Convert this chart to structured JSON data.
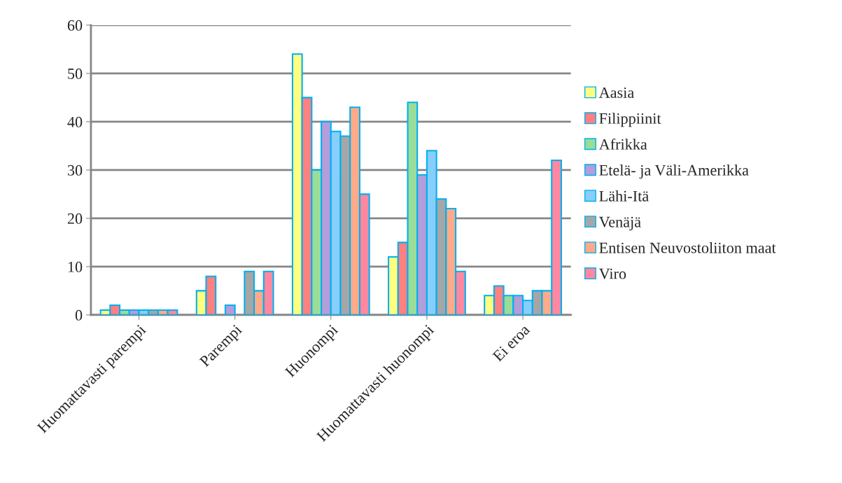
{
  "chart_data": {
    "type": "bar",
    "categories": [
      "Huomattavasti parempi",
      "Parempi",
      "Huonompi",
      "Huomattavasti huonompi",
      "Ei eroa"
    ],
    "series": [
      {
        "name": "Aasia",
        "color": "#ffff80",
        "values": [
          1,
          5,
          54,
          12,
          4
        ]
      },
      {
        "name": "Filippiinit",
        "color": "#ff8080",
        "values": [
          2,
          8,
          45,
          15,
          6
        ]
      },
      {
        "name": "Afrikka",
        "color": "#99dd99",
        "values": [
          1,
          0,
          30,
          44,
          4
        ]
      },
      {
        "name": "Etelä- ja Väli-Amerikka",
        "color": "#b39ddb",
        "values": [
          1,
          2,
          40,
          29,
          4
        ]
      },
      {
        "name": "Lähi-Itä",
        "color": "#87cefa",
        "values": [
          1,
          0,
          38,
          34,
          3
        ]
      },
      {
        "name": "Venäjä",
        "color": "#a6a6a6",
        "values": [
          1,
          9,
          37,
          24,
          5
        ]
      },
      {
        "name": "Entisen Neuvostoliiton maat",
        "color": "#ffaa88",
        "values": [
          1,
          5,
          43,
          22,
          5
        ]
      },
      {
        "name": "Viro",
        "color": "#ff88a0",
        "values": [
          1,
          9,
          25,
          9,
          32
        ]
      }
    ],
    "ylim": [
      0,
      60
    ],
    "yticks": [
      0,
      10,
      20,
      30,
      40,
      50,
      60
    ],
    "grid": "y",
    "legend": "right"
  }
}
